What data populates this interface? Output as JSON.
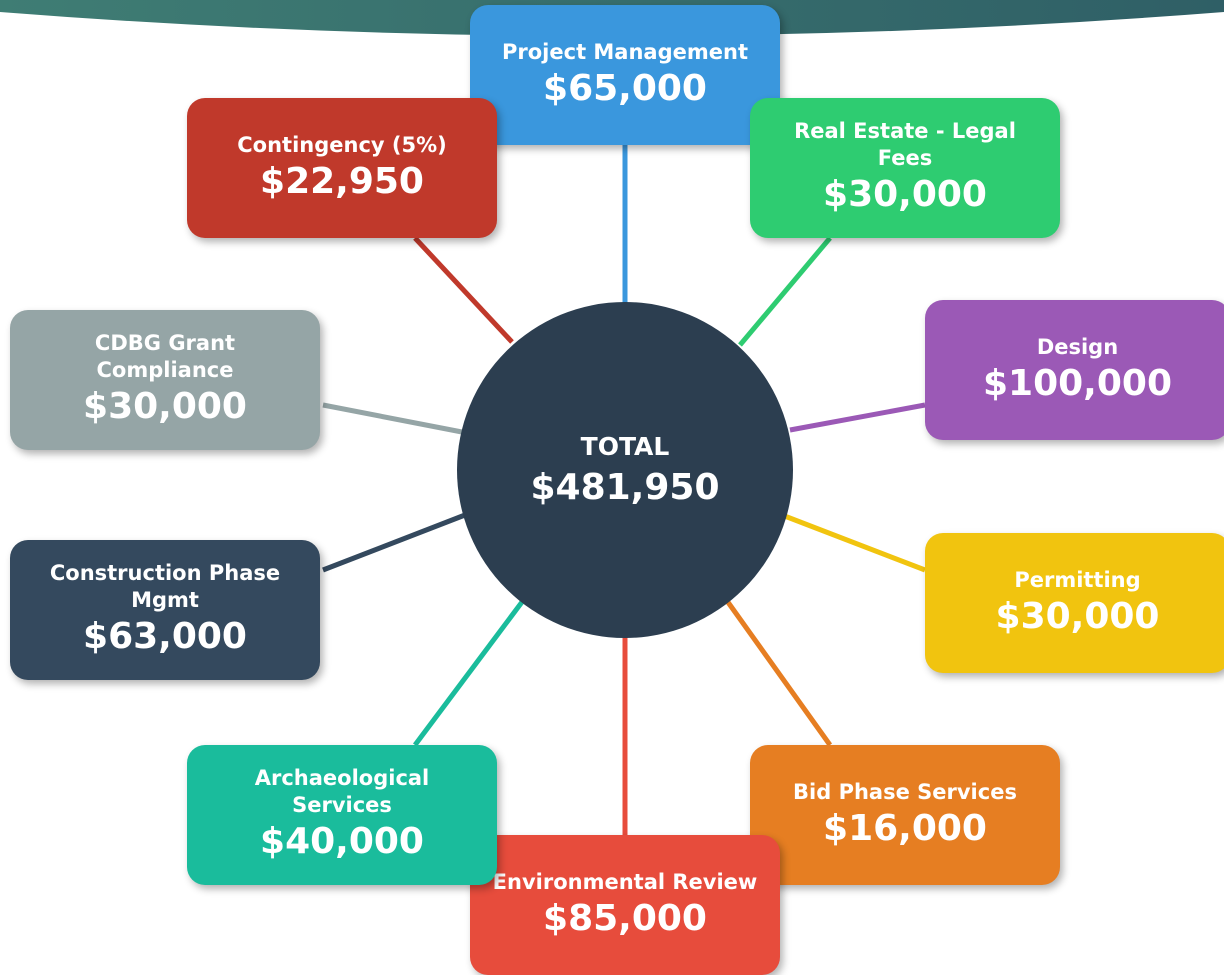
{
  "center": {
    "label": "TOTAL",
    "amount": "$481,950"
  },
  "nodes": [
    {
      "label": "Project Management",
      "amount": "$65,000"
    },
    {
      "label": "Real Estate - Legal Fees",
      "amount": "$30,000"
    },
    {
      "label": "Design",
      "amount": "$100,000"
    },
    {
      "label": "Permitting",
      "amount": "$30,000"
    },
    {
      "label": "Bid Phase Services",
      "amount": "$16,000"
    },
    {
      "label": "Environmental Review",
      "amount": "$85,000"
    },
    {
      "label": "Archaeological Services",
      "amount": "$40,000"
    },
    {
      "label": "Construction Phase Mgmt",
      "amount": "$63,000"
    },
    {
      "label": "CDBG Grant Compliance",
      "amount": "$30,000"
    },
    {
      "label": "Contingency (5%)",
      "amount": "$22,950"
    }
  ]
}
